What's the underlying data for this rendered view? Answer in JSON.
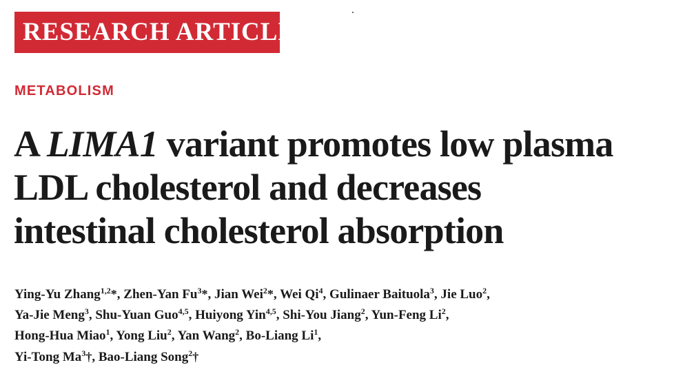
{
  "banner": {
    "label": "RESEARCH ARTICLE"
  },
  "section": {
    "label": "METABOLISM"
  },
  "title": {
    "line1_prefix": "A ",
    "line1_gene": "LIMA1",
    "line1_suffix": " variant promotes low plasma",
    "line2": "LDL cholesterol and decreases",
    "line3": "intestinal cholesterol absorption"
  },
  "authors": [
    [
      {
        "name": "Ying-Yu Zhang",
        "aff": "1,2",
        "mark": "*",
        "sep": ", "
      },
      {
        "name": "Zhen-Yan Fu",
        "aff": "3",
        "mark": "*",
        "sep": ", "
      },
      {
        "name": "Jian Wei",
        "aff": "2",
        "mark": "*",
        "sep": ", "
      },
      {
        "name": "Wei Qi",
        "aff": "4",
        "mark": "",
        "sep": ", "
      },
      {
        "name": "Gulinaer Baituola",
        "aff": "3",
        "mark": "",
        "sep": ", "
      },
      {
        "name": "Jie Luo",
        "aff": "2",
        "mark": "",
        "sep": ","
      }
    ],
    [
      {
        "name": "Ya-Jie Meng",
        "aff": "3",
        "mark": "",
        "sep": ", "
      },
      {
        "name": "Shu-Yuan Guo",
        "aff": "4,5",
        "mark": "",
        "sep": ", "
      },
      {
        "name": "Huiyong Yin",
        "aff": "4,5",
        "mark": "",
        "sep": ", "
      },
      {
        "name": "Shi-You Jiang",
        "aff": "2",
        "mark": "",
        "sep": ", "
      },
      {
        "name": "Yun-Feng Li",
        "aff": "2",
        "mark": "",
        "sep": ","
      }
    ],
    [
      {
        "name": "Hong-Hua Miao",
        "aff": "1",
        "mark": "",
        "sep": ", "
      },
      {
        "name": "Yong Liu",
        "aff": "2",
        "mark": "",
        "sep": ", "
      },
      {
        "name": "Yan Wang",
        "aff": "2",
        "mark": "",
        "sep": ", "
      },
      {
        "name": "Bo-Liang Li",
        "aff": "1",
        "mark": "",
        "sep": ","
      }
    ],
    [
      {
        "name": "Yi-Tong Ma",
        "aff": "3",
        "mark": "†",
        "sep": ", "
      },
      {
        "name": "Bao-Liang Song",
        "aff": "2",
        "mark": "†",
        "sep": ""
      }
    ]
  ],
  "colors": {
    "accent": "#d22a35",
    "text": "#1a1a1a"
  }
}
